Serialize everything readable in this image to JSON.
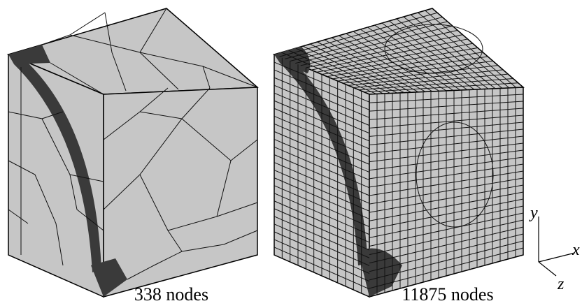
{
  "figure": {
    "left_caption": "338 nodes",
    "right_caption": "11875 nodes",
    "axes": {
      "y": "y",
      "x": "x",
      "z": "z"
    }
  }
}
